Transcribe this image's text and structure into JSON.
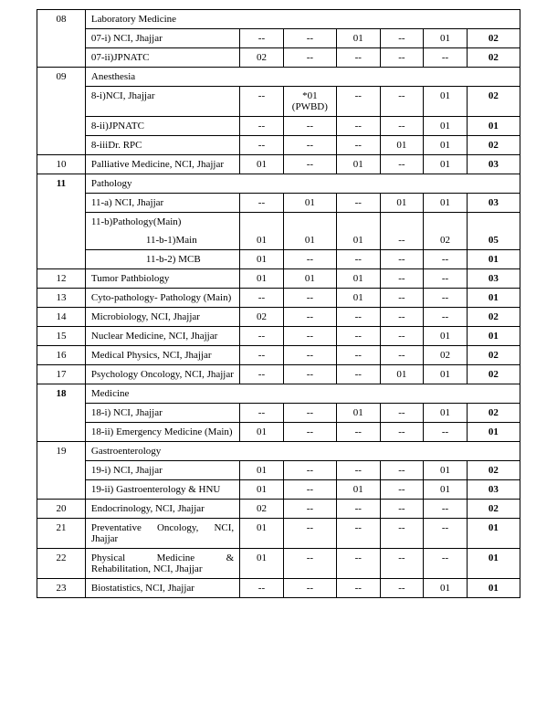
{
  "rows": [
    {
      "type": "header",
      "sno": "08",
      "dept": "Laboratory Medicine"
    },
    {
      "type": "data",
      "sno": "",
      "dept": "07-i) NCI, Jhajjar",
      "v1": "--",
      "v2": "--",
      "v3": "01",
      "v4": "--",
      "v5": "01",
      "v6": "02",
      "bold6": true
    },
    {
      "type": "data",
      "sno": "",
      "dept": "07-ii)JPNATC",
      "v1": "02",
      "v2": "--",
      "v3": "--",
      "v4": "--",
      "v5": "--",
      "v6": "02",
      "bold6": true
    },
    {
      "type": "header",
      "sno": "09",
      "dept": "Anesthesia"
    },
    {
      "type": "data",
      "sno": "",
      "dept": "8-i)NCI, Jhajjar",
      "v1": "--",
      "v2": "*01 (PWBD)",
      "v3": "--",
      "v4": "--",
      "v5": "01",
      "v6": "02",
      "bold6": true
    },
    {
      "type": "data",
      "sno": "",
      "dept": "8-ii)JPNATC",
      "v1": "--",
      "v2": "--",
      "v3": "--",
      "v4": "--",
      "v5": "01",
      "v6": "01",
      "bold6": true
    },
    {
      "type": "data",
      "sno": "",
      "dept": "8-iiiDr. RPC",
      "v1": "--",
      "v2": "--",
      "v3": "--",
      "v4": "01",
      "v5": "01",
      "v6": "02",
      "bold6": true
    },
    {
      "type": "data",
      "sno": "10",
      "dept": "Palliative Medicine, NCI, Jhajjar",
      "v1": "01",
      "v2": "--",
      "v3": "01",
      "v4": "--",
      "v5": "01",
      "v6": "03",
      "bold6": true
    },
    {
      "type": "header",
      "sno": "11",
      "dept": "Pathology",
      "sno_bold": true
    },
    {
      "type": "data",
      "sno": "",
      "dept": "11-a) NCI, Jhajjar",
      "v1": "--",
      "v2": "01",
      "v3": "--",
      "v4": "01",
      "v5": "01",
      "v6": "03",
      "bold6": true
    },
    {
      "type": "pathmain",
      "sno": "",
      "dept": "11-b)Pathology(Main)"
    },
    {
      "type": "data",
      "sno": "",
      "dept_html": "<span class='sub-indent'>11-b-1)Main</span>",
      "v1": "01",
      "v2": "01",
      "v3": "01",
      "v4": "--",
      "v5": "02",
      "v6": "05",
      "bold6": true,
      "no_top_sno": true,
      "no_top_dept": true
    },
    {
      "type": "data",
      "sno": "",
      "dept_html": "<span class='sub-indent'>11-b-2) MCB</span>",
      "v1": "01",
      "v2": "--",
      "v3": "--",
      "v4": "--",
      "v5": "--",
      "v6": "01",
      "bold6": true
    },
    {
      "type": "data",
      "sno": "12",
      "dept": "Tumor Pathbiology",
      "v1": "01",
      "v2": "01",
      "v3": "01",
      "v4": "--",
      "v5": "--",
      "v6": "03",
      "bold6": true
    },
    {
      "type": "data",
      "sno": "13",
      "dept": "Cyto-pathology-\nPathology (Main)",
      "v1": "--",
      "v2": "--",
      "v3": "01",
      "v4": "--",
      "v5": "--",
      "v6": "01",
      "bold6": true
    },
    {
      "type": "data",
      "sno": "14",
      "dept": "Microbiology, NCI, Jhajjar",
      "v1": "02",
      "v2": "--",
      "v3": "--",
      "v4": "--",
      "v5": "--",
      "v6": "02",
      "bold6": true
    },
    {
      "type": "data",
      "sno": "15",
      "dept": "Nuclear Medicine, NCI, Jhajjar",
      "v1": "--",
      "v2": "--",
      "v3": "--",
      "v4": "--",
      "v5": "01",
      "v6": "01",
      "bold6": true
    },
    {
      "type": "data",
      "sno": "16",
      "dept": "Medical Physics, NCI, Jhajjar",
      "v1": "--",
      "v2": "--",
      "v3": "--",
      "v4": "--",
      "v5": "02",
      "v6": "02",
      "bold6": true
    },
    {
      "type": "data",
      "sno": "17",
      "dept": "Psychology Oncology, NCI, Jhajjar",
      "v1": "--",
      "v2": "--",
      "v3": "--",
      "v4": "01",
      "v5": "01",
      "v6": "02",
      "bold6": true
    },
    {
      "type": "header",
      "sno": "18",
      "dept": "Medicine",
      "sno_bold": true
    },
    {
      "type": "data",
      "sno": "",
      "dept": "18-i) NCI, Jhajjar",
      "v1": "--",
      "v2": "--",
      "v3": "01",
      "v4": "--",
      "v5": "01",
      "v6": "02",
      "bold6": true
    },
    {
      "type": "data",
      "sno": "",
      "dept": "18-ii) Emergency Medicine (Main)",
      "v1": "01",
      "v2": "--",
      "v3": "--",
      "v4": "--",
      "v5": "--",
      "v6": "01",
      "bold6": true
    },
    {
      "type": "header",
      "sno": "19",
      "dept": "Gastroenterology"
    },
    {
      "type": "data",
      "sno": "",
      "dept": "19-i) NCI, Jhajjar",
      "v1": "01",
      "v2": "--",
      "v3": "--",
      "v4": "--",
      "v5": "01",
      "v6": "02",
      "bold6": true
    },
    {
      "type": "data",
      "sno": "",
      "dept": "19-ii) Gastroenterology & HNU",
      "v1": "01",
      "v2": "--",
      "v3": "01",
      "v4": "--",
      "v5": "01",
      "v6": "03",
      "bold6": true
    },
    {
      "type": "data",
      "sno": "20",
      "dept": "Endocrinology, NCI, Jhajjar",
      "v1": "02",
      "v2": "--",
      "v3": "--",
      "v4": "--",
      "v5": "--",
      "v6": "02",
      "bold6": true
    },
    {
      "type": "data",
      "sno": "21",
      "dept": "Preventative Oncology, NCI, Jhajjar",
      "v1": "01",
      "v2": "--",
      "v3": "--",
      "v4": "--",
      "v5": "--",
      "v6": "01",
      "bold6": true
    },
    {
      "type": "data",
      "sno": "22",
      "dept": "Physical Medicine & Rehabilitation, NCI, Jhajjar",
      "v1": "01",
      "v2": "--",
      "v3": "--",
      "v4": "--",
      "v5": "--",
      "v6": "01",
      "bold6": true
    },
    {
      "type": "data",
      "sno": "23",
      "dept": "Biostatistics, NCI, Jhajjar",
      "v1": "--",
      "v2": "--",
      "v3": "--",
      "v4": "--",
      "v5": "01",
      "v6": "01",
      "bold6": true
    }
  ]
}
